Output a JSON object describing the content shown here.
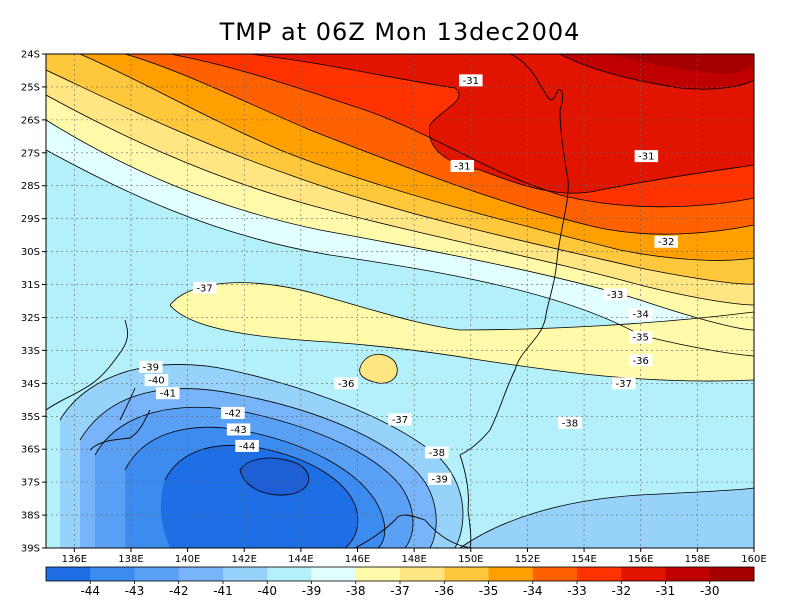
{
  "title": "TMP at 06Z Mon 13dec2004",
  "lat_labels": [
    "24S",
    "25S",
    "26S",
    "27S",
    "28S",
    "29S",
    "30S",
    "31S",
    "32S",
    "33S",
    "34S",
    "35S",
    "36S",
    "37S",
    "38S",
    "39S"
  ],
  "lon_labels": [
    "136E",
    "138E",
    "140E",
    "142E",
    "144E",
    "146E",
    "148E",
    "150E",
    "152E",
    "154E",
    "156E",
    "158E",
    "160E"
  ],
  "colorbar": {
    "labels": [
      "-44",
      "-43",
      "-42",
      "-41",
      "-40",
      "-39",
      "-38",
      "-37",
      "-36",
      "-35",
      "-34",
      "-33",
      "-32",
      "-31",
      "-30"
    ],
    "colors": [
      "#1e6ee6",
      "#3c8cf0",
      "#5aa0f5",
      "#78b4fa",
      "#96d2fa",
      "#b4f0fa",
      "#e1ffff",
      "#fffaaa",
      "#ffe682",
      "#ffc83c",
      "#ffa000",
      "#ff6000",
      "#ff3200",
      "#e11400",
      "#c00000",
      "#a50000"
    ]
  },
  "contour_labels": [
    {
      "text": "-31",
      "lon": 150.0,
      "lat": 24.8
    },
    {
      "text": "-31",
      "lon": 149.7,
      "lat": 27.4
    },
    {
      "text": "-31",
      "lon": 156.2,
      "lat": 27.1
    },
    {
      "text": "-32",
      "lon": 156.9,
      "lat": 29.7
    },
    {
      "text": "-33",
      "lon": 155.1,
      "lat": 31.3
    },
    {
      "text": "-34",
      "lon": 156.0,
      "lat": 31.9
    },
    {
      "text": "-35",
      "lon": 156.0,
      "lat": 32.6
    },
    {
      "text": "-36",
      "lon": 156.0,
      "lat": 33.3
    },
    {
      "text": "-37",
      "lon": 155.4,
      "lat": 34.0
    },
    {
      "text": "-37",
      "lon": 140.6,
      "lat": 31.1
    },
    {
      "text": "-36",
      "lon": 145.6,
      "lat": 34.0
    },
    {
      "text": "-37",
      "lon": 147.5,
      "lat": 35.1
    },
    {
      "text": "-38",
      "lon": 153.5,
      "lat": 35.2
    },
    {
      "text": "-38",
      "lon": 148.8,
      "lat": 36.1
    },
    {
      "text": "-39",
      "lon": 148.9,
      "lat": 36.9
    },
    {
      "text": "-39",
      "lon": 138.7,
      "lat": 33.5
    },
    {
      "text": "-40",
      "lon": 138.9,
      "lat": 33.9
    },
    {
      "text": "-41",
      "lon": 139.3,
      "lat": 34.3
    },
    {
      "text": "-42",
      "lon": 141.6,
      "lat": 34.9
    },
    {
      "text": "-43",
      "lon": 141.8,
      "lat": 35.4
    },
    {
      "text": "-44",
      "lon": 142.1,
      "lat": 35.9
    }
  ]
}
